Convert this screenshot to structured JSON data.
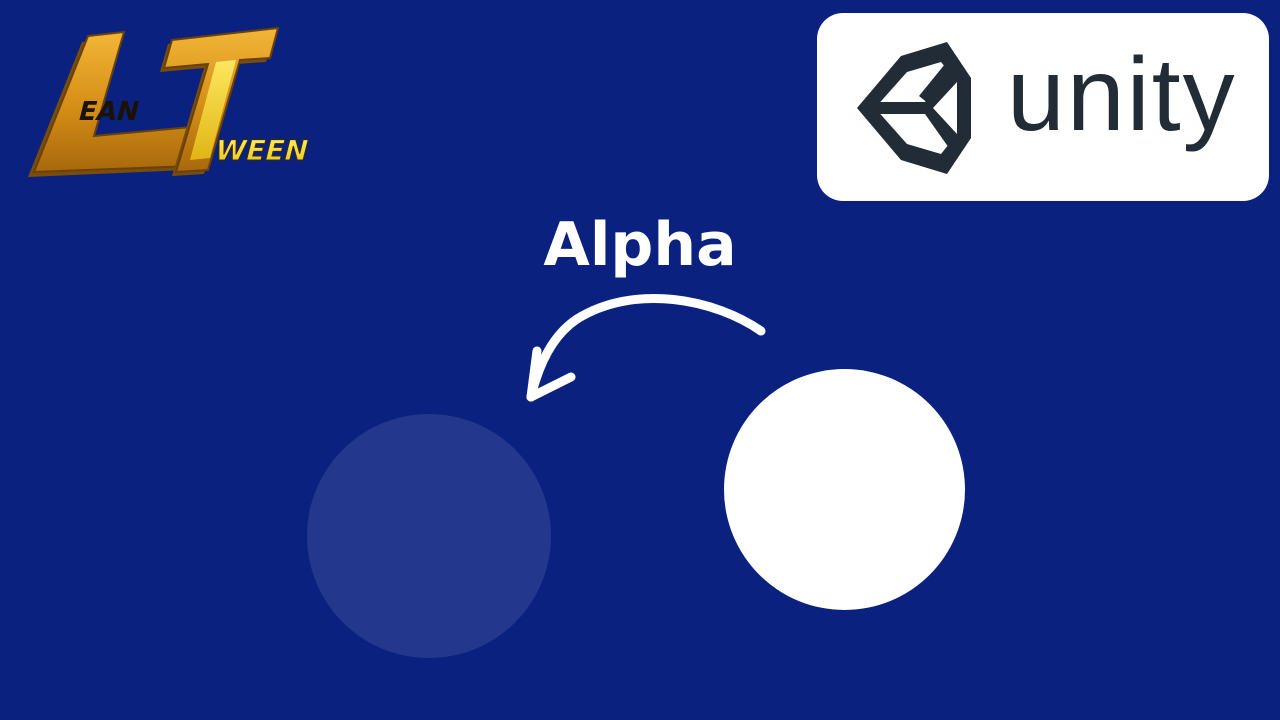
{
  "colors": {
    "background": "#0b2180",
    "white": "#ffffff",
    "faded_circle": "#233789",
    "unity_dark": "#222c37",
    "logo_gold": "#d99a22",
    "logo_gold_dark": "#8a5a0c",
    "logo_yellow": "#f5d51e"
  },
  "logo": {
    "name": "LeanTween",
    "letters": {
      "big_l": "L",
      "big_t": "T",
      "ean": "EAN",
      "ween": "WEEN"
    }
  },
  "unity": {
    "wordmark": "unity",
    "icon": "unity-cube-icon"
  },
  "title": "Alpha",
  "arrow": {
    "icon": "curved-arrow-left-icon"
  },
  "circles": {
    "faded": {
      "opacity": 0.1
    },
    "solid": {
      "opacity": 1
    }
  }
}
